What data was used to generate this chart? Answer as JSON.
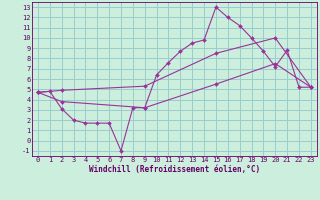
{
  "xlabel": "Windchill (Refroidissement éolien,°C)",
  "bg_color": "#cceedd",
  "grid_color": "#99cccc",
  "line_color": "#993399",
  "spine_color": "#660066",
  "xlim": [
    -0.5,
    23.5
  ],
  "ylim": [
    -1.5,
    13.5
  ],
  "xticks": [
    0,
    1,
    2,
    3,
    4,
    5,
    6,
    7,
    8,
    9,
    10,
    11,
    12,
    13,
    14,
    15,
    16,
    17,
    18,
    19,
    20,
    21,
    22,
    23
  ],
  "yticks": [
    -1,
    0,
    1,
    2,
    3,
    4,
    5,
    6,
    7,
    8,
    9,
    10,
    11,
    12,
    13
  ],
  "curve1_x": [
    0,
    1,
    2,
    3,
    4,
    5,
    6,
    7,
    8,
    9,
    10,
    11,
    12,
    13,
    14,
    15,
    16,
    17,
    18,
    19,
    20,
    21,
    22,
    23
  ],
  "curve1_y": [
    4.7,
    4.8,
    3.1,
    2.0,
    1.7,
    1.7,
    1.7,
    -1.0,
    3.2,
    3.2,
    6.4,
    7.6,
    8.7,
    9.5,
    9.8,
    13.0,
    12.0,
    11.2,
    10.0,
    8.7,
    7.2,
    8.8,
    5.2,
    5.2
  ],
  "curve2_x": [
    0,
    2,
    9,
    15,
    20,
    23
  ],
  "curve2_y": [
    4.7,
    4.9,
    5.3,
    8.5,
    10.0,
    5.2
  ],
  "curve3_x": [
    0,
    2,
    9,
    15,
    20,
    23
  ],
  "curve3_y": [
    4.7,
    3.8,
    3.2,
    5.5,
    7.5,
    5.2
  ],
  "tick_fontsize": 5.0,
  "xlabel_fontsize": 5.5
}
